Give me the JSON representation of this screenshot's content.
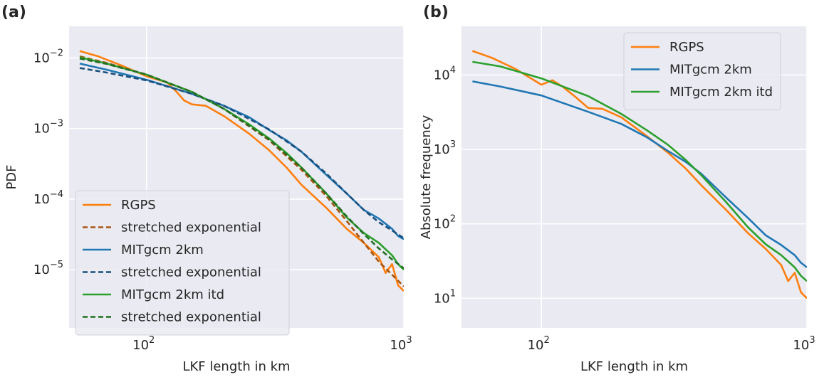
{
  "chart_data": [
    {
      "type": "line",
      "panel_label": "(a)",
      "xlabel": "LKF length in km",
      "ylabel": "PDF",
      "xscale": "log",
      "yscale": "log",
      "xlim": [
        50,
        1000
      ],
      "ylim": [
        1.5e-06,
        0.028
      ],
      "xticks": [
        {
          "base": "10",
          "exp": "2",
          "value": 100
        },
        {
          "base": "10",
          "exp": "3",
          "value": 1000
        }
      ],
      "yticks": [
        {
          "base": "10",
          "exp": "−2",
          "value": 0.01
        },
        {
          "base": "10",
          "exp": "−3",
          "value": 0.001
        },
        {
          "base": "10",
          "exp": "−4",
          "value": 0.0001
        },
        {
          "base": "10",
          "exp": "−5",
          "value": 1e-05
        }
      ],
      "grid": true,
      "legend_position": "lower-left",
      "series": [
        {
          "name": "RGPS",
          "color": "#ff7f0e",
          "style": "solid",
          "x": [
            55,
            65,
            80,
            100,
            120,
            130,
            140,
            150,
            170,
            200,
            250,
            300,
            350,
            400,
            500,
            600,
            700,
            800,
            850,
            900,
            950,
            1000
          ],
          "y": [
            0.0125,
            0.0105,
            0.0078,
            0.0055,
            0.0045,
            0.0034,
            0.0025,
            0.0022,
            0.0021,
            0.0015,
            0.00085,
            0.00049,
            0.00028,
            0.00016,
            7.5e-05,
            3.8e-05,
            2.4e-05,
            1.5e-05,
            9e-06,
            1.2e-05,
            6e-06,
            5e-06
          ]
        },
        {
          "name": "stretched exponential",
          "color": "#a8550f",
          "style": "dashed",
          "x": [
            55,
            70,
            100,
            150,
            200,
            300,
            400,
            500,
            600,
            700,
            800,
            900,
            1000
          ],
          "y": [
            0.0105,
            0.0085,
            0.0058,
            0.0033,
            0.0019,
            0.00068,
            0.00026,
            0.00011,
            4.9e-05,
            2.4e-05,
            1.3e-05,
            8.5e-06,
            5.8e-06
          ]
        },
        {
          "name": "MITgcm 2km",
          "color": "#1f77b4",
          "style": "solid",
          "x": [
            55,
            70,
            100,
            150,
            200,
            250,
            300,
            350,
            400,
            500,
            600,
            700,
            800,
            900,
            950,
            1000
          ],
          "y": [
            0.0083,
            0.0068,
            0.0049,
            0.0031,
            0.0021,
            0.00145,
            0.00095,
            0.00068,
            0.00047,
            0.00022,
            0.00012,
            7e-05,
            5.3e-05,
            3.8e-05,
            3e-05,
            2.7e-05
          ]
        },
        {
          "name": "stretched exponential",
          "color": "#1b4f7a",
          "style": "dashed",
          "x": [
            55,
            70,
            100,
            150,
            200,
            300,
            400,
            500,
            600,
            700,
            800,
            900,
            1000
          ],
          "y": [
            0.0072,
            0.0062,
            0.0048,
            0.0031,
            0.0021,
            0.00097,
            0.00047,
            0.00023,
            0.00012,
            7e-05,
            4.7e-05,
            3.6e-05,
            2.8e-05
          ]
        },
        {
          "name": "MITgcm 2km itd",
          "color": "#2ca02c",
          "style": "solid",
          "x": [
            55,
            70,
            100,
            150,
            200,
            250,
            300,
            350,
            400,
            500,
            600,
            700,
            800,
            900,
            950,
            1000
          ],
          "y": [
            0.0102,
            0.0083,
            0.0058,
            0.0033,
            0.0019,
            0.00115,
            0.00072,
            0.00045,
            0.00028,
            0.00012,
            5.5e-05,
            3.3e-05,
            2.4e-05,
            1.6e-05,
            1.2e-05,
            1e-05
          ]
        },
        {
          "name": "stretched exponential",
          "color": "#236e23",
          "style": "dashed",
          "x": [
            55,
            70,
            100,
            150,
            200,
            300,
            400,
            500,
            600,
            700,
            800,
            900,
            1000
          ],
          "y": [
            0.0098,
            0.0082,
            0.0058,
            0.0033,
            0.0019,
            0.0007,
            0.00028,
            0.00012,
            5.7e-05,
            3.2e-05,
            2e-05,
            1.4e-05,
            1.05e-05
          ]
        }
      ]
    },
    {
      "type": "line",
      "panel_label": "(b)",
      "xlabel": "LKF length in km",
      "ylabel": "Absolute frequency",
      "xscale": "log",
      "yscale": "log",
      "xlim": [
        50,
        1000
      ],
      "ylim": [
        4,
        45000
      ],
      "xticks": [
        {
          "base": "10",
          "exp": "2",
          "value": 100
        },
        {
          "base": "10",
          "exp": "3",
          "value": 1000
        }
      ],
      "yticks": [
        {
          "base": "10",
          "exp": "4",
          "value": 10000
        },
        {
          "base": "10",
          "exp": "3",
          "value": 1000
        },
        {
          "base": "10",
          "exp": "2",
          "value": 100
        },
        {
          "base": "10",
          "exp": "1",
          "value": 10
        }
      ],
      "grid": true,
      "legend_position": "top-right",
      "series": [
        {
          "name": "RGPS",
          "color": "#ff7f0e",
          "style": "solid",
          "x": [
            55,
            65,
            80,
            100,
            110,
            120,
            135,
            150,
            170,
            200,
            250,
            300,
            350,
            400,
            500,
            600,
            700,
            800,
            850,
            900,
            950,
            1000
          ],
          "y": [
            21000,
            17000,
            12000,
            7400,
            8500,
            7000,
            5000,
            3600,
            3500,
            2700,
            1500,
            900,
            550,
            330,
            150,
            75,
            46,
            28,
            17,
            22,
            12,
            10
          ]
        },
        {
          "name": "MITgcm 2km",
          "color": "#1f77b4",
          "style": "solid",
          "x": [
            55,
            70,
            100,
            150,
            200,
            250,
            300,
            350,
            400,
            500,
            600,
            700,
            800,
            900,
            950,
            1000
          ],
          "y": [
            8200,
            7000,
            5300,
            3200,
            2200,
            1450,
            950,
            680,
            470,
            220,
            120,
            70,
            52,
            38,
            30,
            26
          ]
        },
        {
          "name": "MITgcm 2km itd",
          "color": "#2ca02c",
          "style": "solid",
          "x": [
            55,
            70,
            100,
            150,
            200,
            250,
            300,
            350,
            400,
            500,
            600,
            700,
            800,
            900,
            950,
            1000
          ],
          "y": [
            15000,
            13000,
            9000,
            5200,
            3000,
            1800,
            1150,
            720,
            450,
            190,
            90,
            53,
            38,
            26,
            20,
            17
          ]
        }
      ]
    }
  ]
}
